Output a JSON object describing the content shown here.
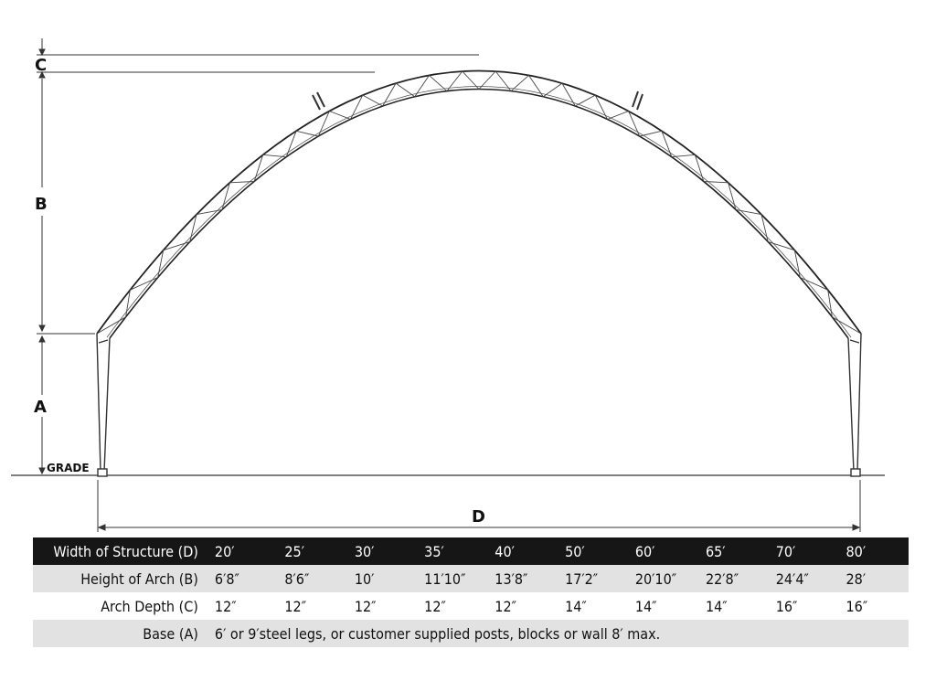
{
  "diagram": {
    "labels": {
      "c": "C",
      "b": "B",
      "a": "A",
      "grade": "GRADE",
      "d": "D"
    }
  },
  "table": {
    "rows": [
      {
        "label": "Width of Structure (D)",
        "style": "dark",
        "values": [
          "20′",
          "25′",
          "30′",
          "35′",
          "40′",
          "50′",
          "60′",
          "65′",
          "70′",
          "80′"
        ]
      },
      {
        "label": "Height of Arch (B)",
        "style": "light",
        "values": [
          "6′8″",
          "8′6″",
          "10′",
          "11′10″",
          "13′8″",
          "17′2″",
          "20′10″",
          "22′8″",
          "24′4″",
          "28′"
        ]
      },
      {
        "label": "Arch Depth (C)",
        "style": "white",
        "values": [
          "12″",
          "12″",
          "12″",
          "12″",
          "12″",
          "14″",
          "14″",
          "14″",
          "16″",
          "16″"
        ]
      }
    ],
    "base": {
      "label": "Base (A)",
      "text": "6′ or 9′steel legs, or customer supplied posts, blocks or wall 8′ max."
    }
  }
}
